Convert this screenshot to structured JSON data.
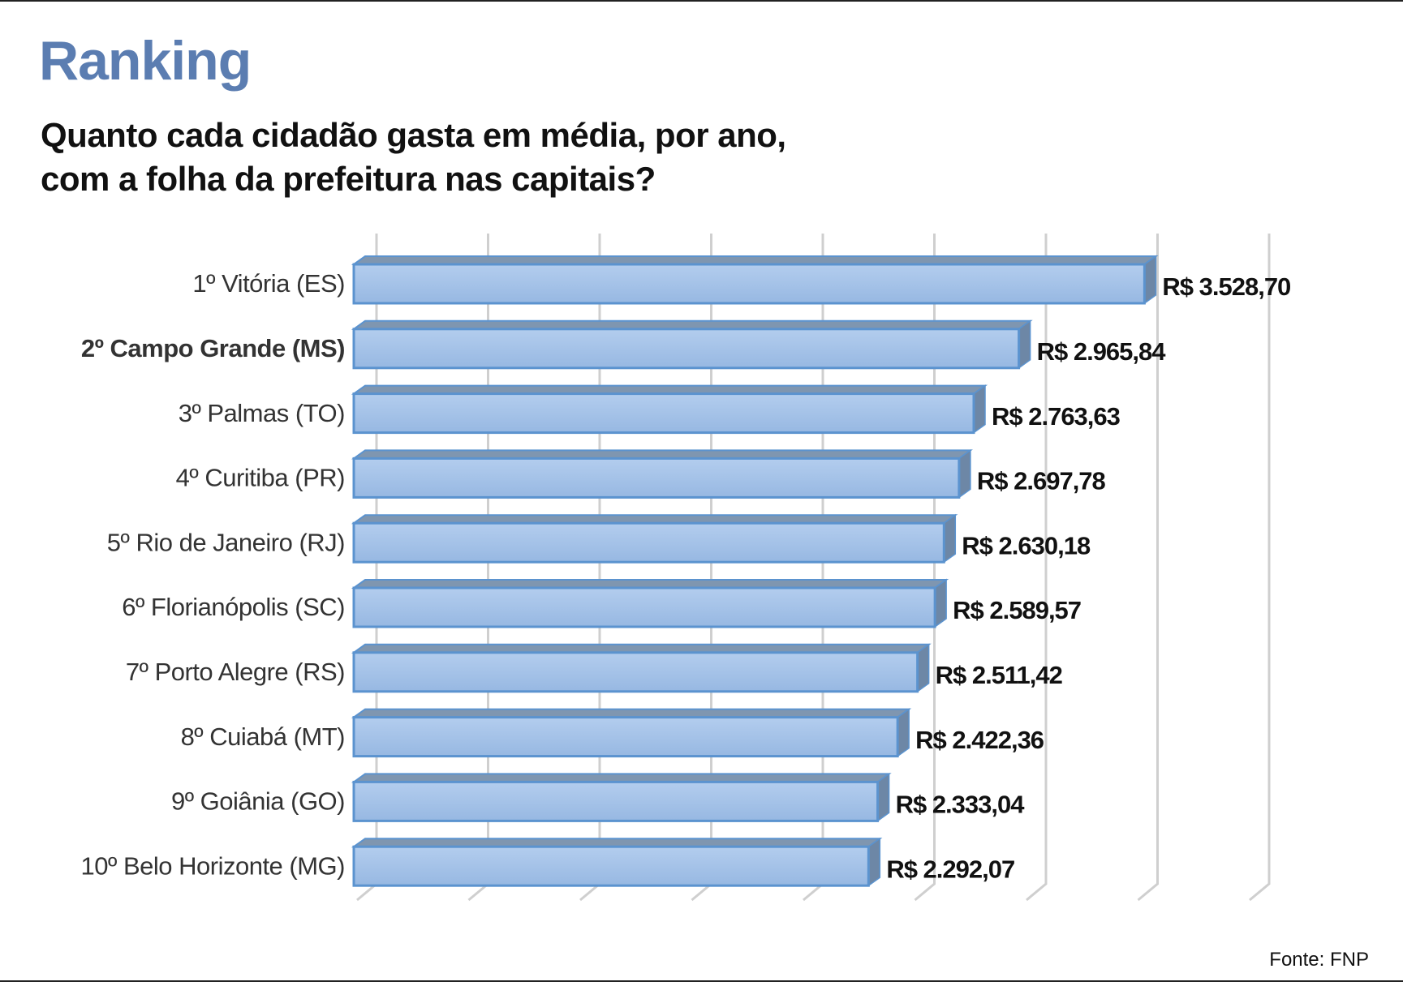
{
  "header": {
    "title": "Ranking",
    "subtitle_line1": "Quanto cada cidadão gasta em média, por ano,",
    "subtitle_line2": "com a folha da prefeitura nas capitais?"
  },
  "footer": {
    "source": "Fonte: FNP"
  },
  "colors": {
    "title": "#5b7db1",
    "bar_front": "#a4c2e8",
    "bar_top": "#7f96b0",
    "bar_edge": "#5b93cf"
  },
  "chart_data": {
    "type": "bar",
    "orientation": "horizontal",
    "title": "Quanto cada cidadão gasta em média, por ano, com a folha da prefeitura nas capitais?",
    "xlabel": "",
    "ylabel": "",
    "xlim": [
      0,
      4000
    ],
    "grid_step": 500,
    "grid": true,
    "legend": "none",
    "categories": [
      "1º Vitória (ES)",
      "2º Campo Grande (MS)",
      "3º Palmas (TO)",
      "4º Curitiba (PR)",
      "5º Rio de Janeiro (RJ)",
      "6º Florianópolis (SC)",
      "7º Porto Alegre (RS)",
      "8º Cuiabá (MT)",
      "9º Goiânia (GO)",
      "10º Belo Horizonte (MG)"
    ],
    "bold_category_index": 1,
    "values": [
      3528.7,
      2965.84,
      2763.63,
      2697.78,
      2630.18,
      2589.57,
      2511.42,
      2422.36,
      2333.04,
      2292.07
    ],
    "value_labels": [
      "R$ 3.528,70",
      "R$ 2.965,84",
      "R$ 2.763,63",
      "R$ 2.697,78",
      "R$ 2.630,18",
      "R$ 2.589,57",
      "R$ 2.511,42",
      "R$ 2.422,36",
      "R$ 2.333,04",
      "R$ 2.292,07"
    ]
  }
}
